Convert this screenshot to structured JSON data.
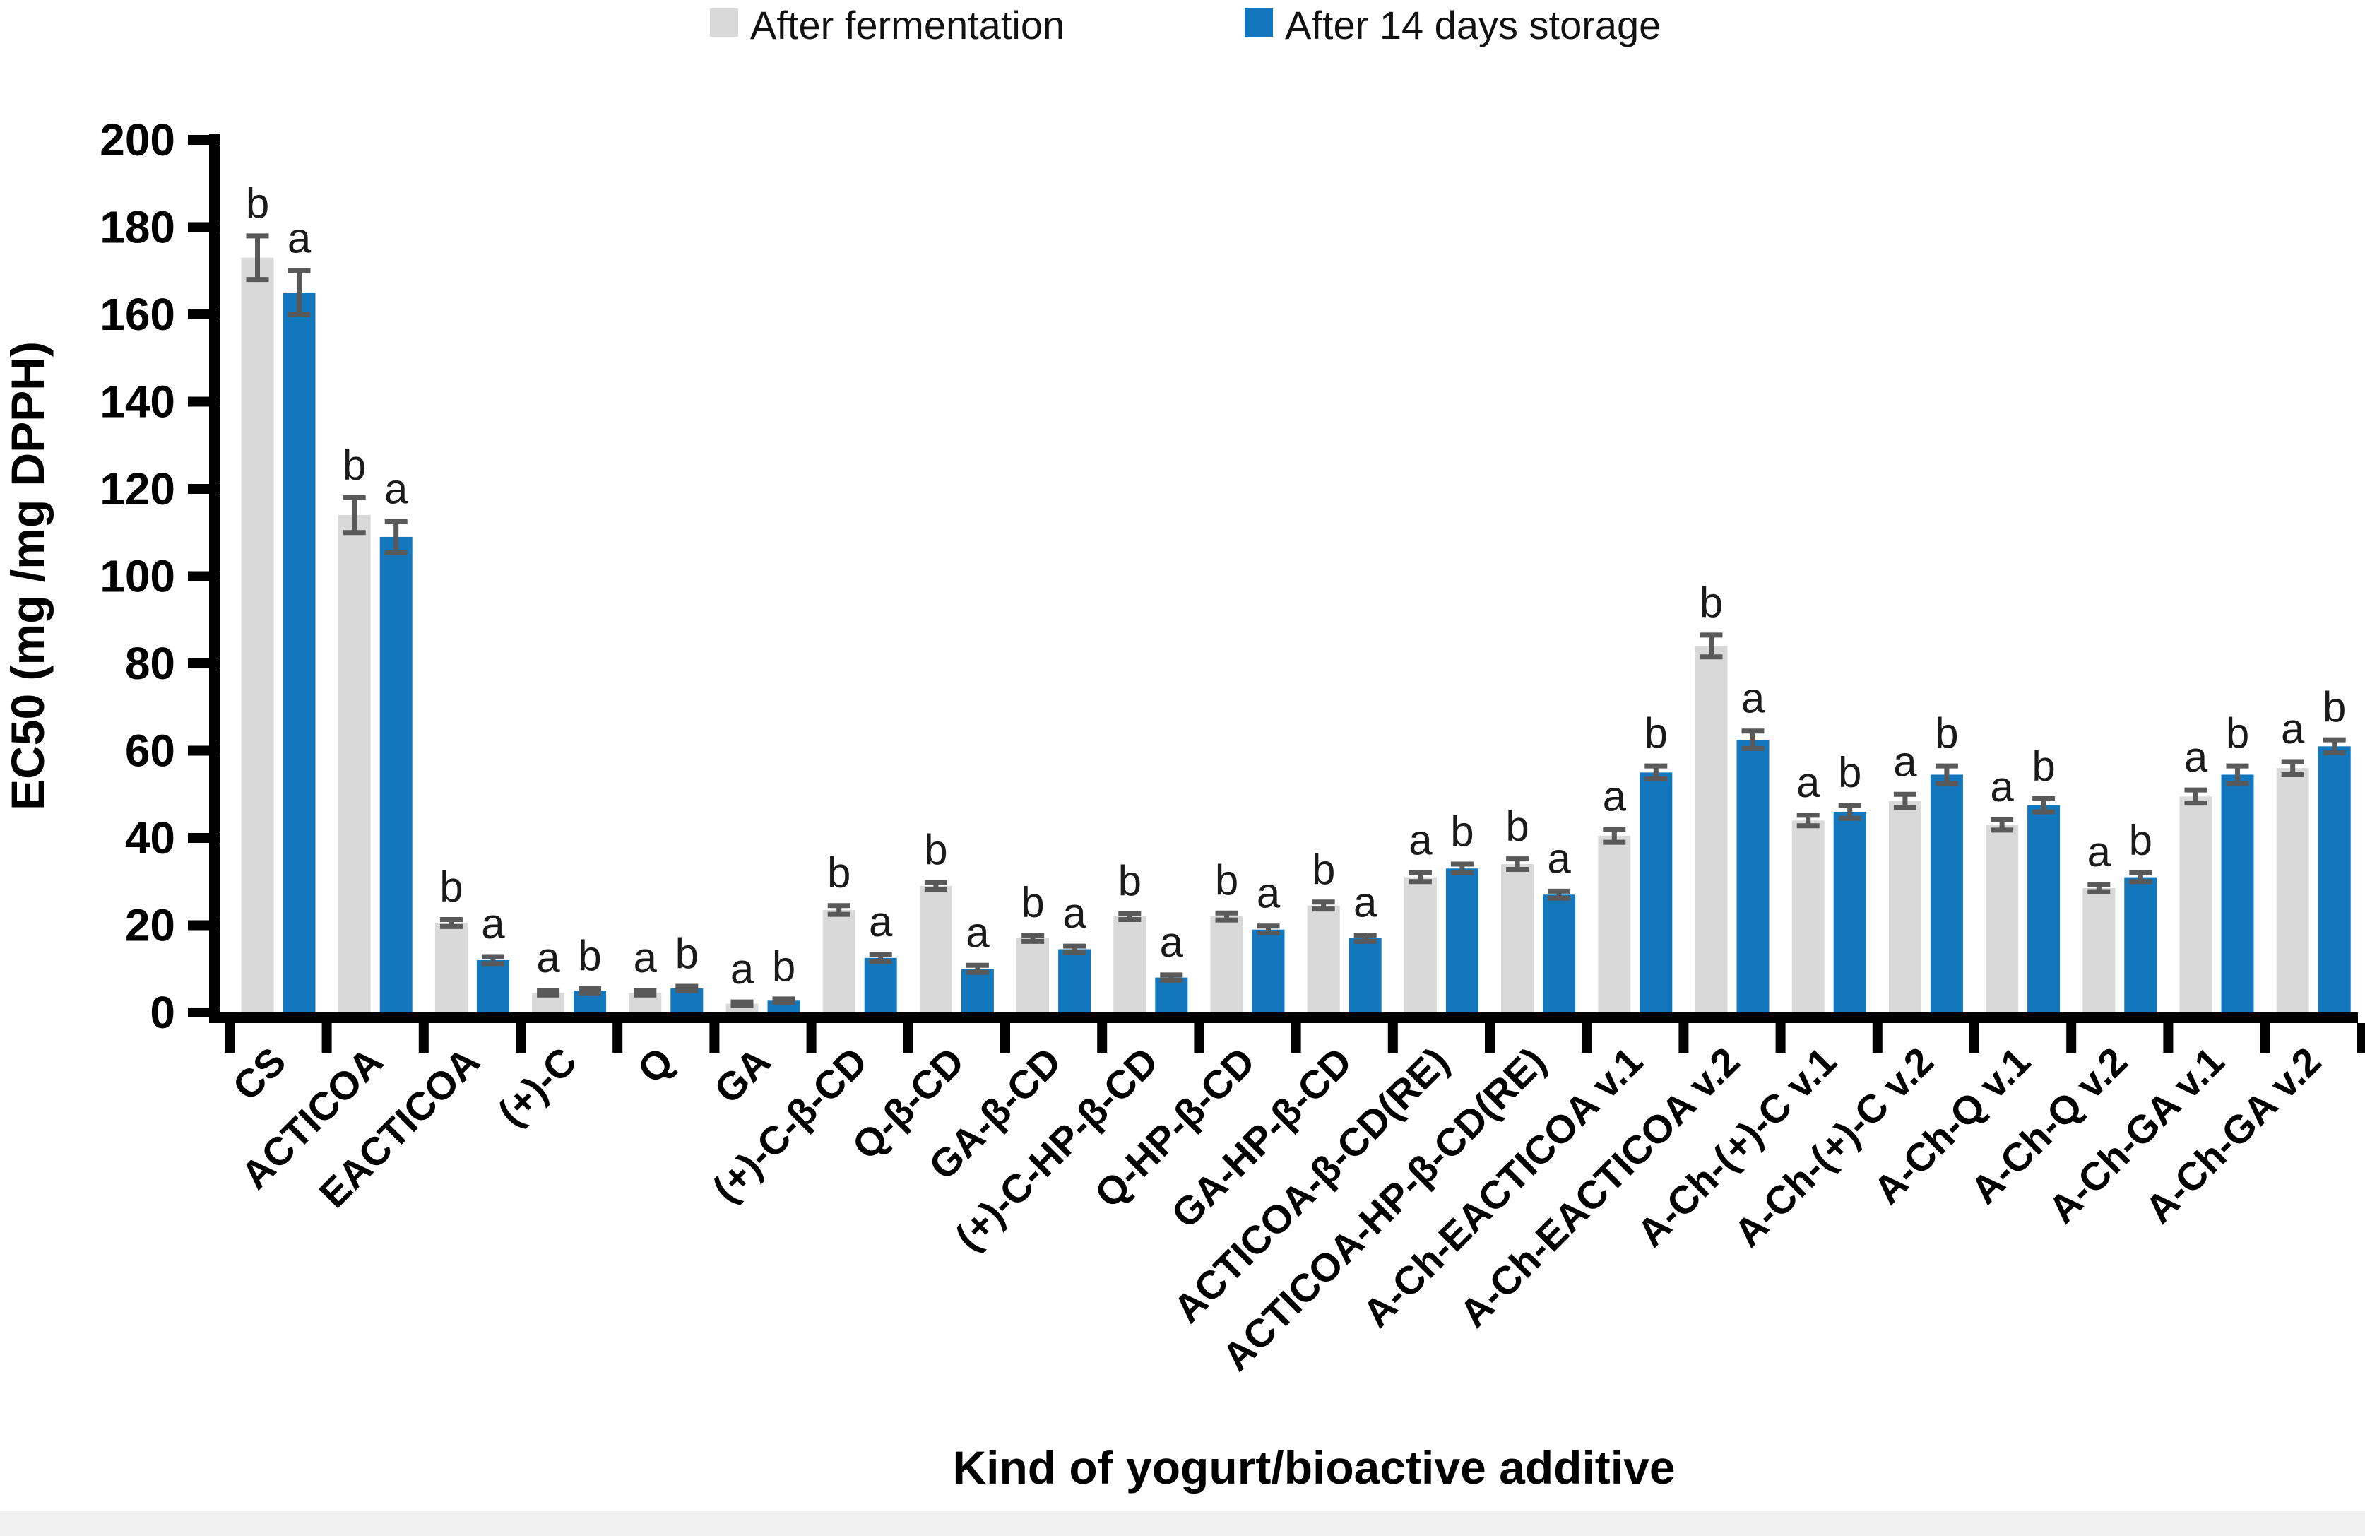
{
  "chart_data": {
    "type": "bar",
    "title": "",
    "xlabel": "Kind of yogurt/bioactive additive",
    "ylabel": "EC50 (mg /mg DPPH)",
    "ylim": [
      0,
      200
    ],
    "ytick_step": 20,
    "grid": false,
    "legend_position": "top-center",
    "error_bar_color": "#595959",
    "axis_color": "#000000",
    "categories": [
      "CS",
      "ACTICOA",
      "EACTICOA",
      "(+)-C",
      "Q",
      "GA",
      "(+)-C-β-CD",
      "Q-β-CD",
      "GA-β-CD",
      "(+)-C-HP-β-CD",
      "Q-HP-β-CD",
      "GA-HP-β-CD",
      "ACTICOA-β-CD(RE)",
      "ACTICOA-HP-β-CD(RE)",
      "A-Ch-EACTICOA v.1",
      "A-Ch-EACTICOA v.2",
      "A-Ch-(+)-C v.1",
      "A-Ch-(+)-C v.2",
      "A-Ch-Q v.1",
      "A-Ch-Q v.2",
      "A-Ch-GA v.1",
      "A-Ch-GA v.2"
    ],
    "series": [
      {
        "name": "After fermentation",
        "color": "#d9d9d9",
        "values": [
          173,
          114,
          20.5,
          4.5,
          4.5,
          2,
          23.5,
          29,
          17,
          22,
          22,
          24.5,
          31,
          34,
          40.5,
          84,
          44,
          48.5,
          43,
          28.5,
          49.5,
          56
        ],
        "errors": [
          5,
          4,
          0.8,
          0.5,
          0.5,
          0.4,
          1,
          0.8,
          0.7,
          0.7,
          0.8,
          0.8,
          1,
          1.2,
          1.5,
          2.5,
          1.2,
          1.5,
          1.2,
          0.8,
          1.5,
          1.5
        ],
        "letters": [
          "b",
          "b",
          "b",
          "a",
          "a",
          "a",
          "b",
          "b",
          "b",
          "b",
          "b",
          "b",
          "a",
          "b",
          "a",
          "b",
          "a",
          "a",
          "a",
          "a",
          "a",
          "a"
        ]
      },
      {
        "name": "After 14 days storage",
        "color": "#1277bd",
        "values": [
          165,
          109,
          12,
          5,
          5.5,
          2.7,
          12.5,
          10,
          14.5,
          8,
          19,
          17,
          33,
          27,
          55,
          62.5,
          46,
          54.5,
          47.5,
          31,
          54.5,
          61
        ],
        "errors": [
          5,
          3.5,
          0.8,
          0.5,
          0.5,
          0.4,
          0.8,
          0.8,
          0.7,
          0.6,
          0.8,
          0.7,
          1,
          0.8,
          1.5,
          2,
          1.5,
          2,
          1.5,
          1,
          2,
          1.5
        ],
        "letters": [
          "a",
          "a",
          "a",
          "b",
          "b",
          "b",
          "a",
          "a",
          "a",
          "a",
          "a",
          "a",
          "b",
          "a",
          "b",
          "a",
          "b",
          "b",
          "b",
          "b",
          "b",
          "b"
        ]
      }
    ],
    "ytick_labels": [
      "0",
      "20",
      "40",
      "60",
      "80",
      "100",
      "120",
      "140",
      "160",
      "180",
      "200"
    ]
  }
}
